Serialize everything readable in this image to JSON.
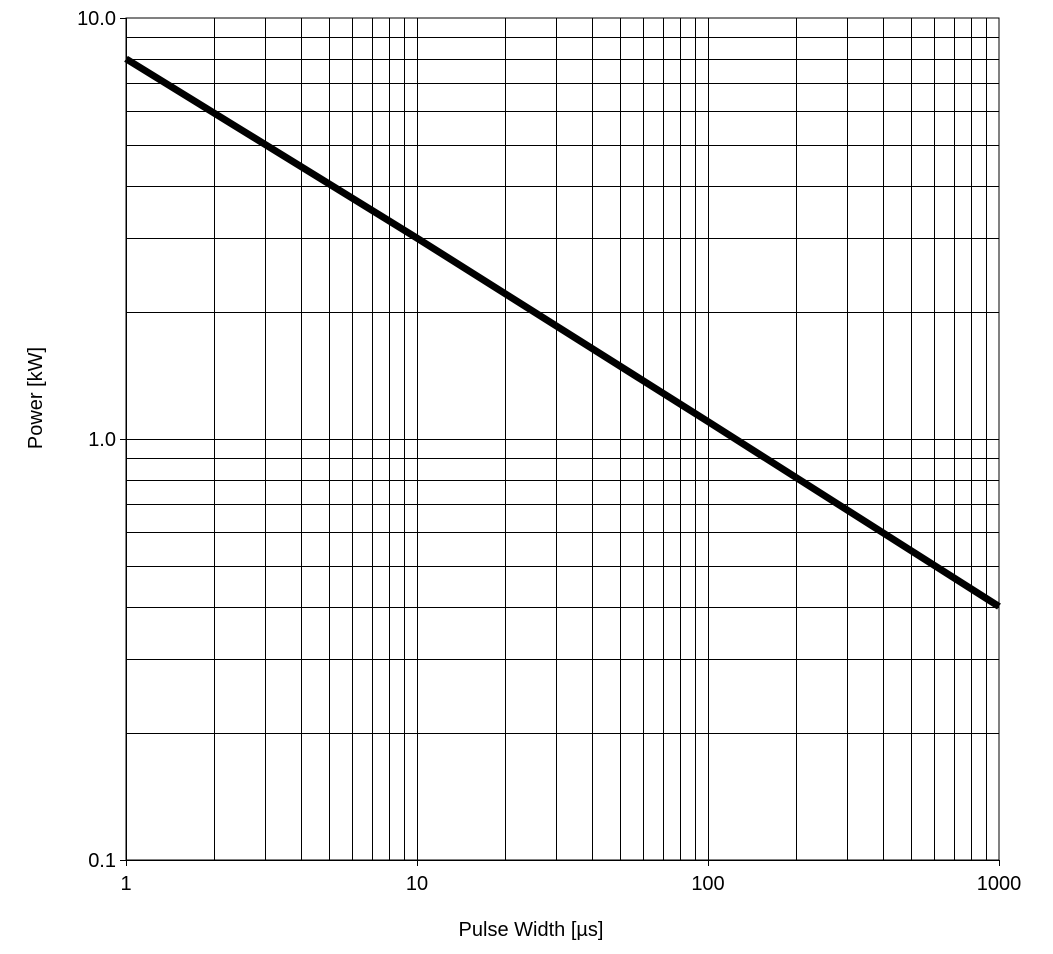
{
  "chart_data": {
    "type": "line",
    "title": "",
    "xlabel": "Pulse Width [µs]",
    "ylabel": "Power [kW]",
    "x_scale": "log",
    "y_scale": "log",
    "xlim": [
      1,
      1000
    ],
    "ylim": [
      0.1,
      10
    ],
    "x_ticks": [
      {
        "value": 1,
        "label": "1"
      },
      {
        "value": 10,
        "label": "10"
      },
      {
        "value": 100,
        "label": "100"
      },
      {
        "value": 1000,
        "label": "1000"
      }
    ],
    "y_ticks": [
      {
        "value": 0.1,
        "label": "0.1"
      },
      {
        "value": 1,
        "label": "1.0"
      },
      {
        "value": 10,
        "label": "10.0"
      }
    ],
    "grid": true,
    "series": [
      {
        "color": "#000000",
        "x": [
          1,
          10,
          100,
          1000
        ],
        "y": [
          8,
          3,
          1.1,
          0.4
        ]
      }
    ]
  }
}
